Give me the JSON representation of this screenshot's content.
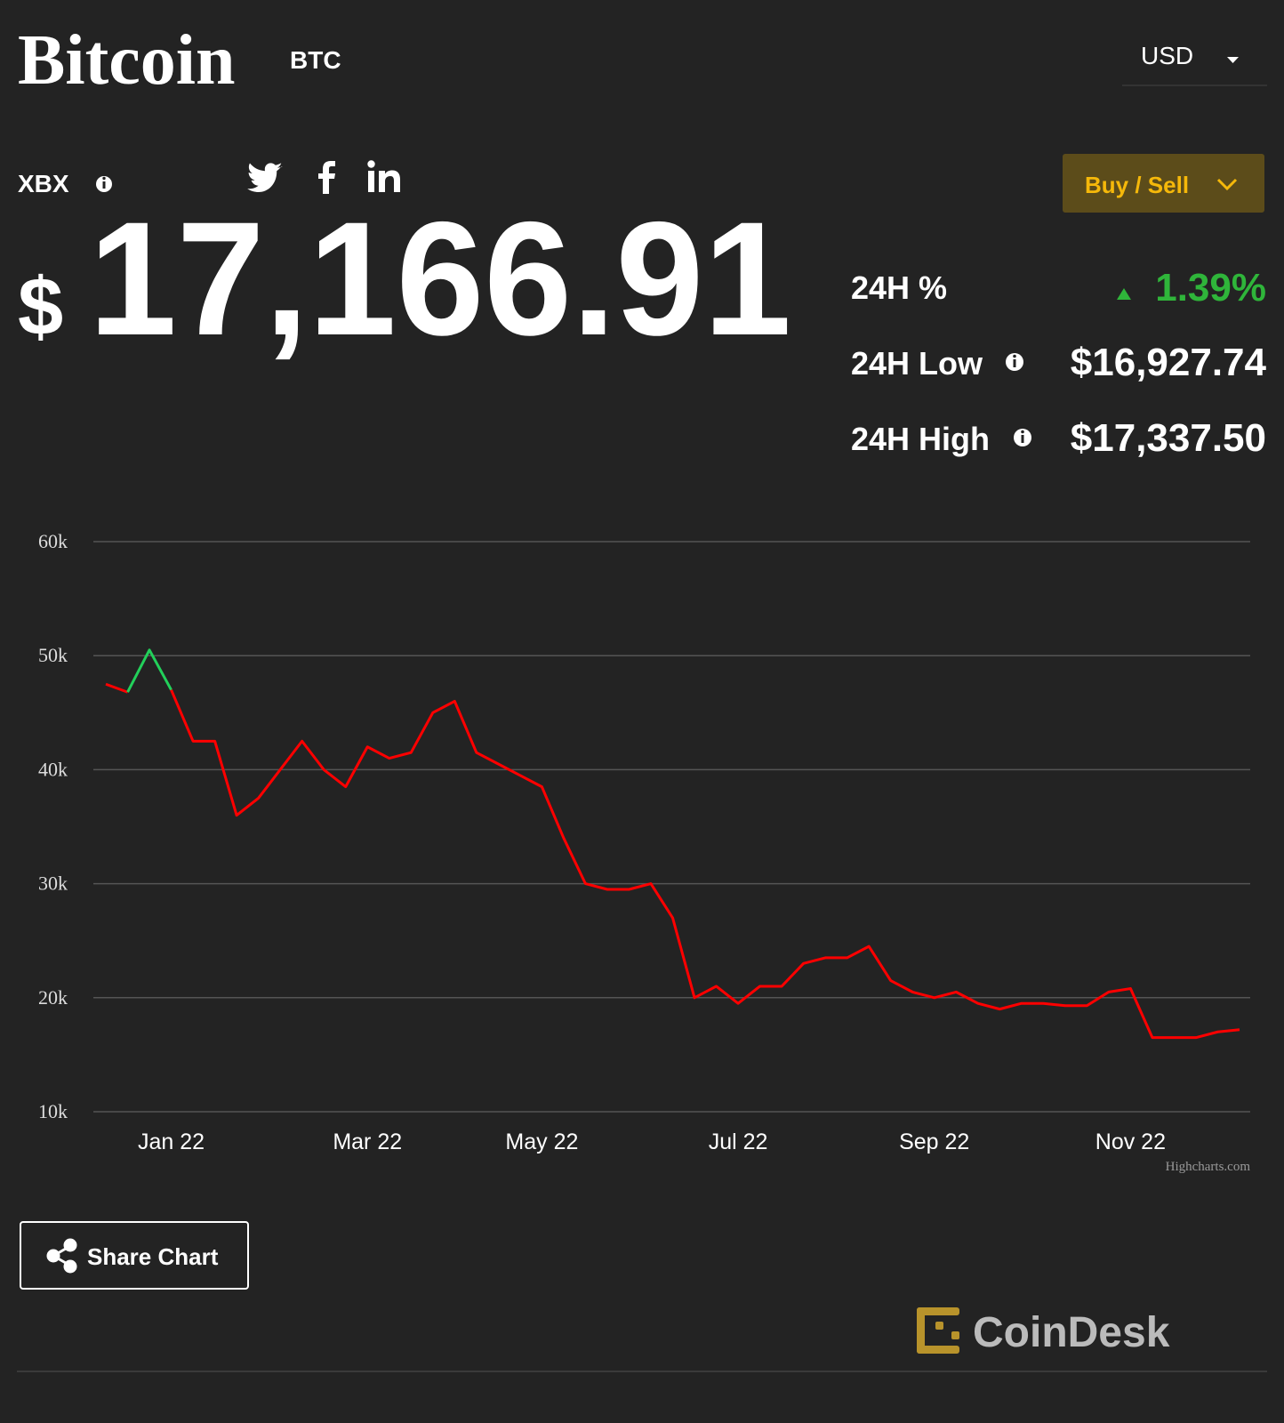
{
  "header": {
    "title": "Bitcoin",
    "symbol": "BTC",
    "currency": "USD"
  },
  "ticker": {
    "index": "XBX",
    "currency_sign": "$",
    "price": "17,166.91"
  },
  "buy_sell": "Buy / Sell",
  "stats": [
    {
      "label": "24H %",
      "value": "1.39%"
    },
    {
      "label": "24H Low",
      "value": "$16,927.74"
    },
    {
      "label": "24H High",
      "value": "$17,337.50"
    }
  ],
  "chart_data": {
    "type": "line",
    "categories": [
      null,
      null,
      null,
      "Jan 22",
      null,
      null,
      null,
      null,
      null,
      null,
      null,
      null,
      "Mar 22",
      null,
      null,
      null,
      null,
      null,
      null,
      null,
      "May 22",
      null,
      null,
      null,
      null,
      null,
      null,
      null,
      null,
      "Jul 22",
      null,
      null,
      null,
      null,
      null,
      null,
      null,
      null,
      "Sep 22",
      null,
      null,
      null,
      null,
      null,
      null,
      null,
      null,
      "Nov 22",
      null,
      null,
      null,
      null,
      null
    ],
    "series": [
      {
        "color": "#ff0000",
        "up_color": "#22d05a",
        "values": [
          47500,
          46800,
          50500,
          47000,
          42500,
          42500,
          36000,
          37500,
          40000,
          42500,
          40000,
          38500,
          42000,
          41000,
          41500,
          45000,
          46000,
          41500,
          40500,
          39500,
          38500,
          34000,
          30000,
          29500,
          29500,
          30000,
          27000,
          20000,
          21000,
          19500,
          21000,
          21000,
          23000,
          23500,
          23500,
          24500,
          21500,
          20500,
          20000,
          20500,
          19500,
          19000,
          19500,
          19500,
          19300,
          19300,
          20500,
          20800,
          16500,
          16500,
          16500,
          17000,
          17200
        ]
      }
    ],
    "ylim": [
      10000,
      60000
    ],
    "yticks": [
      {
        "value": 10000,
        "label": "10k"
      },
      {
        "value": 20000,
        "label": "20k"
      },
      {
        "value": 30000,
        "label": "30k"
      },
      {
        "value": 40000,
        "label": "40k"
      },
      {
        "value": 50000,
        "label": "50k"
      },
      {
        "value": 60000,
        "label": "60k"
      }
    ],
    "grid": true,
    "credit": "Highcharts.com"
  },
  "share_button": "Share Chart",
  "brand": "CoinDesk"
}
